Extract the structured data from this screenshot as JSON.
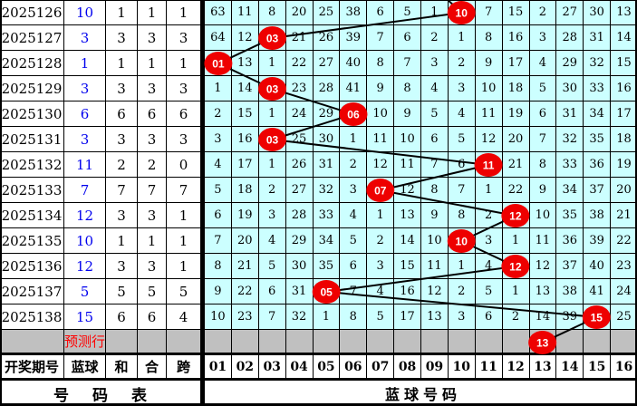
{
  "colors": {
    "grid_cell_bg": "#CCFFFF",
    "prediction_row_bg": "#C0C0C0",
    "ball_red": "#EE0000",
    "blue_number_text": "#0000EE",
    "prediction_label_text": "#FF0000",
    "line_color": "#000000"
  },
  "left_table": {
    "headers": [
      "开奖期号",
      "蓝球",
      "和",
      "合",
      "跨"
    ],
    "footer_label": "号码表",
    "prediction_label": "预测行",
    "rows": [
      [
        "2025126",
        "10",
        "1",
        "1",
        "1"
      ],
      [
        "2025127",
        "3",
        "3",
        "3",
        "3"
      ],
      [
        "2025128",
        "1",
        "1",
        "1",
        "1"
      ],
      [
        "2025129",
        "3",
        "3",
        "3",
        "3"
      ],
      [
        "2025130",
        "6",
        "6",
        "6",
        "6"
      ],
      [
        "2025131",
        "3",
        "3",
        "3",
        "3"
      ],
      [
        "2025132",
        "11",
        "2",
        "2",
        "0"
      ],
      [
        "2025133",
        "7",
        "7",
        "7",
        "7"
      ],
      [
        "2025134",
        "12",
        "3",
        "3",
        "1"
      ],
      [
        "2025135",
        "10",
        "1",
        "1",
        "1"
      ],
      [
        "2025136",
        "12",
        "3",
        "3",
        "1"
      ],
      [
        "2025137",
        "5",
        "5",
        "5",
        "5"
      ],
      [
        "2025138",
        "15",
        "6",
        "6",
        "4"
      ]
    ]
  },
  "grid": {
    "column_headers": [
      "01",
      "02",
      "03",
      "04",
      "05",
      "06",
      "07",
      "08",
      "09",
      "10",
      "11",
      "12",
      "13",
      "14",
      "15",
      "16"
    ],
    "footer_label": "蓝球号码",
    "incoming_line_col": 9,
    "rows": [
      {
        "period": "2025126",
        "ball_col": 10,
        "cells": [
          "63",
          "11",
          "8",
          "20",
          "25",
          "38",
          "6",
          "5",
          "1",
          "10",
          "7",
          "15",
          "2",
          "27",
          "30",
          "13"
        ]
      },
      {
        "period": "2025127",
        "ball_col": 3,
        "cells": [
          "64",
          "12",
          "03",
          "21",
          "26",
          "39",
          "7",
          "6",
          "2",
          "1",
          "8",
          "16",
          "3",
          "28",
          "31",
          "14"
        ]
      },
      {
        "period": "2025128",
        "ball_col": 1,
        "cells": [
          "01",
          "13",
          "1",
          "22",
          "27",
          "40",
          "8",
          "7",
          "3",
          "2",
          "9",
          "17",
          "4",
          "29",
          "32",
          "15"
        ]
      },
      {
        "period": "2025129",
        "ball_col": 3,
        "cells": [
          "1",
          "14",
          "03",
          "23",
          "28",
          "41",
          "9",
          "8",
          "4",
          "3",
          "10",
          "18",
          "5",
          "30",
          "33",
          "16"
        ]
      },
      {
        "period": "2025130",
        "ball_col": 6,
        "cells": [
          "2",
          "15",
          "1",
          "24",
          "29",
          "06",
          "10",
          "9",
          "5",
          "4",
          "11",
          "19",
          "6",
          "31",
          "34",
          "17"
        ]
      },
      {
        "period": "2025131",
        "ball_col": 3,
        "cells": [
          "3",
          "16",
          "03",
          "25",
          "30",
          "1",
          "11",
          "10",
          "6",
          "5",
          "12",
          "20",
          "7",
          "32",
          "35",
          "18"
        ]
      },
      {
        "period": "2025132",
        "ball_col": 11,
        "cells": [
          "4",
          "17",
          "1",
          "26",
          "31",
          "2",
          "12",
          "11",
          "7",
          "6",
          "11",
          "21",
          "8",
          "33",
          "36",
          "19"
        ]
      },
      {
        "period": "2025133",
        "ball_col": 7,
        "cells": [
          "5",
          "18",
          "2",
          "27",
          "32",
          "3",
          "07",
          "12",
          "8",
          "7",
          "1",
          "22",
          "9",
          "34",
          "37",
          "20"
        ]
      },
      {
        "period": "2025134",
        "ball_col": 12,
        "cells": [
          "6",
          "19",
          "3",
          "28",
          "33",
          "4",
          "1",
          "13",
          "9",
          "8",
          "2",
          "12",
          "10",
          "35",
          "38",
          "21"
        ]
      },
      {
        "period": "2025135",
        "ball_col": 10,
        "cells": [
          "7",
          "20",
          "4",
          "29",
          "34",
          "5",
          "2",
          "14",
          "10",
          "10",
          "3",
          "1",
          "11",
          "36",
          "39",
          "22"
        ]
      },
      {
        "period": "2025136",
        "ball_col": 12,
        "cells": [
          "8",
          "21",
          "5",
          "30",
          "35",
          "6",
          "3",
          "15",
          "11",
          "1",
          "4",
          "12",
          "12",
          "37",
          "40",
          "23"
        ]
      },
      {
        "period": "2025137",
        "ball_col": 5,
        "cells": [
          "9",
          "22",
          "6",
          "31",
          "05",
          "7",
          "4",
          "16",
          "12",
          "2",
          "5",
          "1",
          "13",
          "38",
          "41",
          "24"
        ]
      },
      {
        "period": "2025138",
        "ball_col": 15,
        "cells": [
          "10",
          "23",
          "7",
          "32",
          "1",
          "8",
          "5",
          "17",
          "13",
          "3",
          "6",
          "2",
          "14",
          "39",
          "15",
          "25"
        ]
      }
    ],
    "prediction_ball": {
      "col": 13,
      "label": "13"
    }
  }
}
